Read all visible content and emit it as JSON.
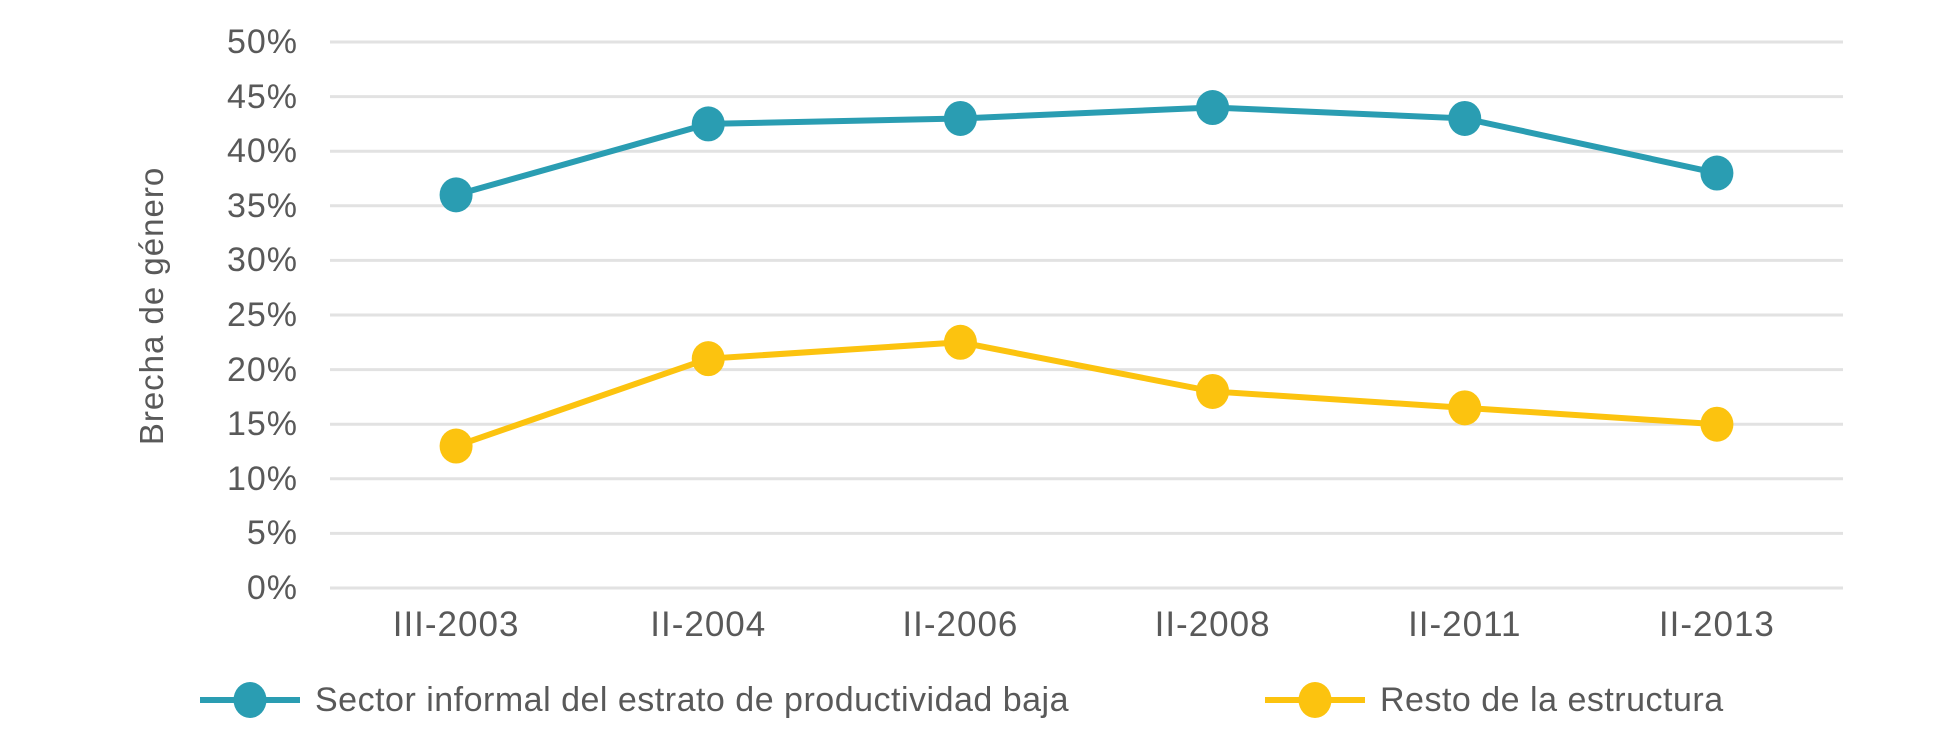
{
  "chart_data": {
    "type": "line",
    "title": "",
    "ylabel": "Brecha de género",
    "xlabel": "",
    "categories": [
      "III-2003",
      "II-2004",
      "II-2006",
      "II-2008",
      "II-2011",
      "II-2013"
    ],
    "series": [
      {
        "name": "Sector informal del estrato de productividad baja",
        "color": "#2A9DB2",
        "values": [
          36,
          42.5,
          43,
          44,
          43,
          38
        ]
      },
      {
        "name": "Resto de la estructura",
        "color": "#FCC30F",
        "values": [
          13,
          21,
          22.5,
          18,
          16.5,
          15
        ]
      }
    ],
    "ylim": [
      0,
      50
    ],
    "ytick_step": 5,
    "ytick_suffix": "%",
    "grid": true,
    "legend_position": "bottom"
  },
  "colors": {
    "grid": "#e2e2e2",
    "text": "#595959",
    "background": "#ffffff"
  }
}
